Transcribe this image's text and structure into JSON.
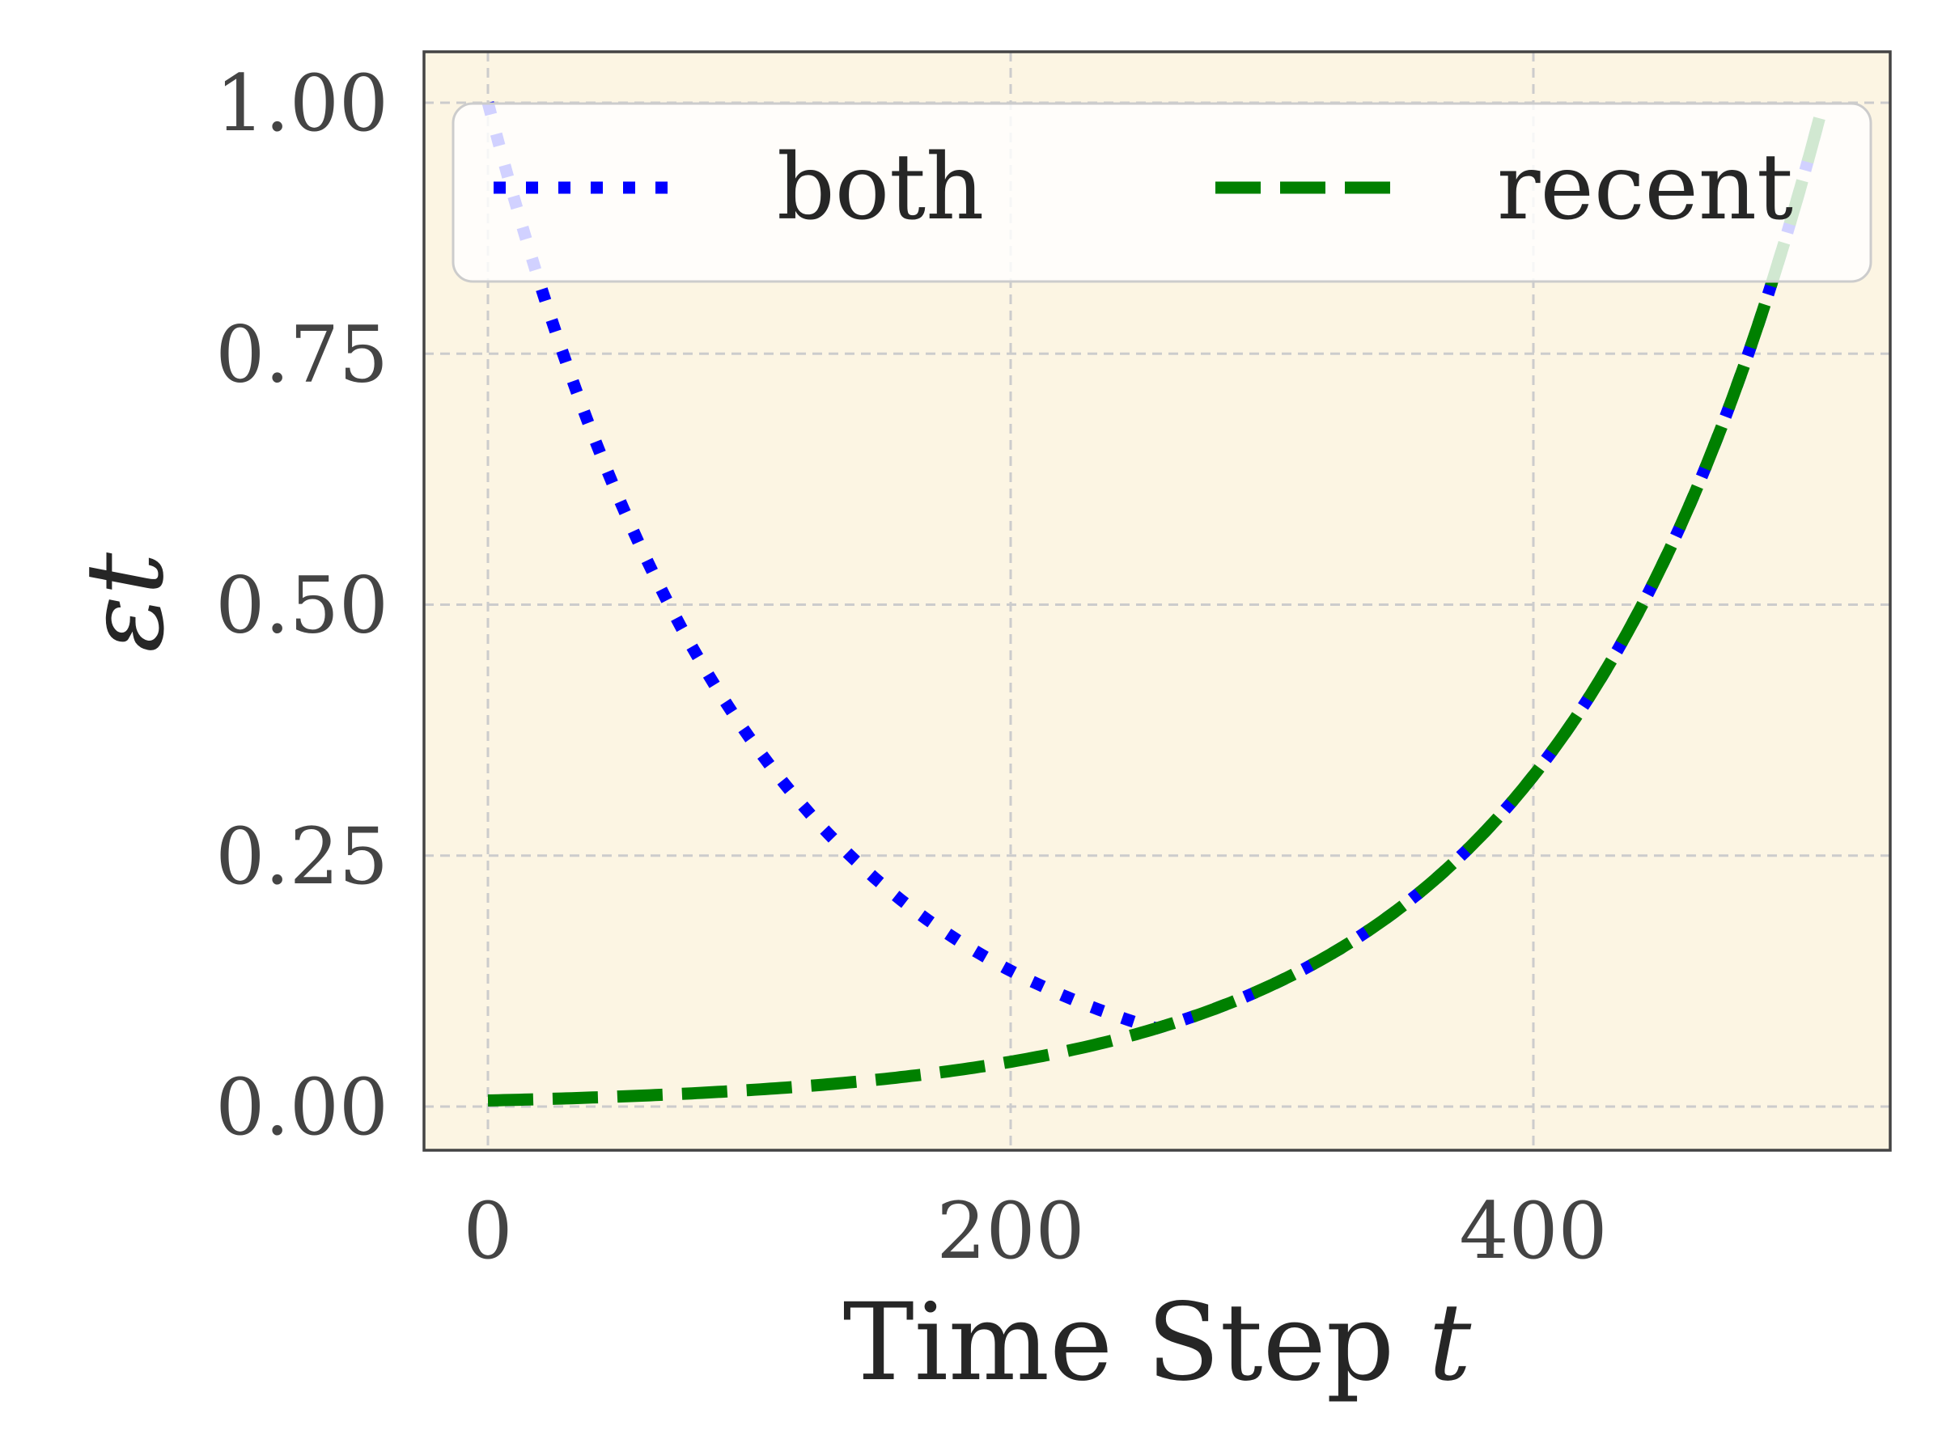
{
  "chart_data": {
    "type": "line",
    "title": "",
    "xlabel": "Time Step t",
    "xlabel_main": "Time Step",
    "xlabel_var": "t",
    "ylabel": "ε_t",
    "ylabel_main": "ε",
    "ylabel_sub": "t",
    "xlim": [
      -13,
      548
    ],
    "ylim": [
      -0.045,
      1.055
    ],
    "x_ticks": [
      0,
      200,
      400
    ],
    "x_tick_labels": [
      "0",
      "200",
      "400"
    ],
    "y_ticks": [
      0.0,
      0.25,
      0.5,
      0.75,
      1.0
    ],
    "y_tick_labels": [
      "0.00",
      "0.25",
      "0.50",
      "0.75",
      "1.00"
    ],
    "grid": true,
    "background": "#FCF5E3",
    "legend": {
      "position": "upper center",
      "ncol": 2,
      "entries": [
        "both",
        "recent"
      ]
    },
    "x": [
      0,
      25,
      50,
      75,
      100,
      125,
      150,
      175,
      200,
      225,
      250,
      275,
      300,
      325,
      350,
      375,
      400,
      425,
      450,
      475,
      500,
      511
    ],
    "series": [
      {
        "name": "both",
        "color": "#0000FF",
        "style": "dotted",
        "values": [
          1.0,
          0.779,
          0.607,
          0.472,
          0.368,
          0.287,
          0.223,
          0.174,
          0.135,
          0.105,
          0.082,
          0.087,
          0.121,
          0.156,
          0.2,
          0.257,
          0.33,
          0.423,
          0.543,
          0.698,
          0.896,
          1.0
        ]
      },
      {
        "name": "recent",
        "color": "#008000",
        "style": "dashed",
        "values": [
          0.006,
          0.008,
          0.01,
          0.013,
          0.016,
          0.021,
          0.027,
          0.034,
          0.044,
          0.057,
          0.073,
          0.093,
          0.121,
          0.156,
          0.2,
          0.257,
          0.33,
          0.423,
          0.543,
          0.698,
          0.896,
          1.0
        ]
      }
    ]
  }
}
